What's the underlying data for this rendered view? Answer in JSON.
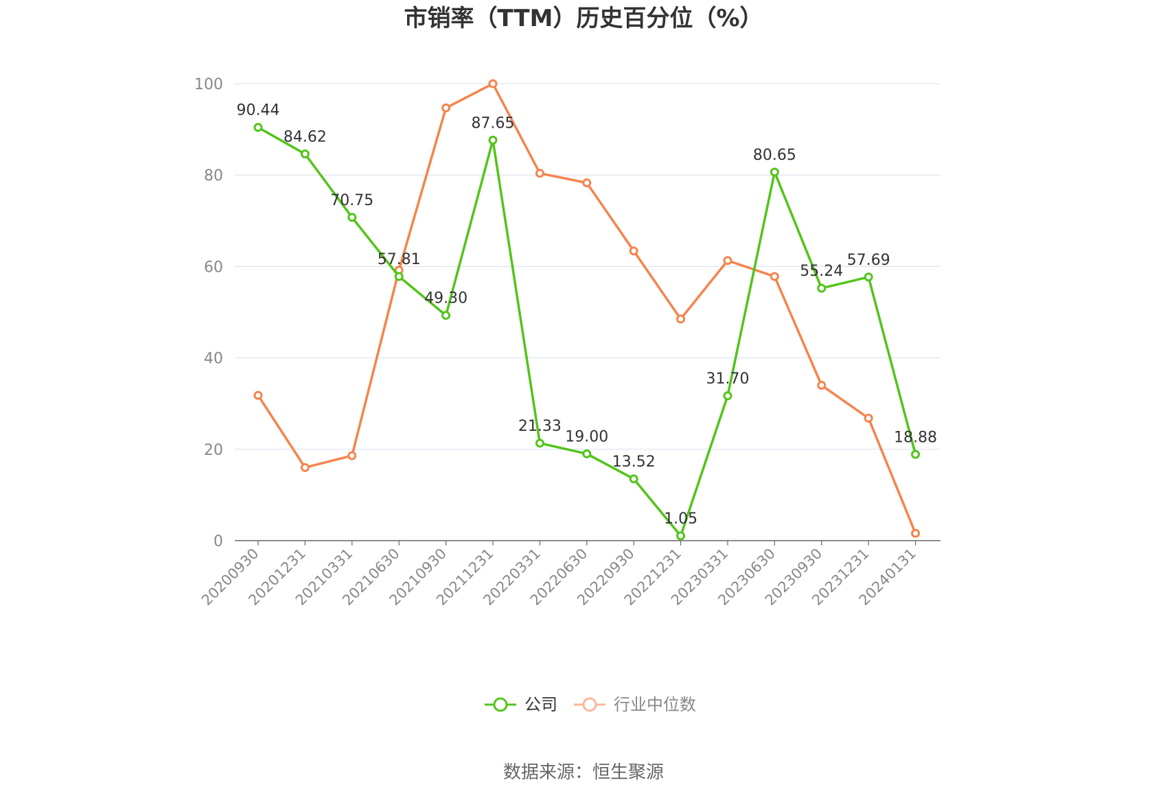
{
  "title": "市销率（TTM）历史百分位（%）",
  "source": "数据来源：恒生聚源",
  "colors": {
    "company": "#52c41a",
    "industry": "#f5844c",
    "industry_legend": "#f9b89a",
    "grid": "#dfe3f0",
    "axis": "#666666"
  },
  "chart_data": {
    "type": "line",
    "x": [
      "20200930",
      "20201231",
      "20210331",
      "20210630",
      "20210930",
      "20211231",
      "20220331",
      "20220630",
      "20220930",
      "20221231",
      "20230331",
      "20230630",
      "20230930",
      "20231231",
      "20240131"
    ],
    "ylim": [
      0,
      100
    ],
    "yticks": [
      0,
      20,
      40,
      60,
      80,
      100
    ],
    "grid": true,
    "legend_position": "bottom-center",
    "series": [
      {
        "name": "公司",
        "values": [
          90.44,
          84.62,
          70.75,
          57.81,
          49.3,
          87.65,
          21.33,
          19.0,
          13.52,
          1.05,
          31.7,
          80.65,
          55.24,
          57.69,
          18.88
        ],
        "labels": [
          "90.44",
          "84.62",
          "70.75",
          "57.81",
          "49.30",
          "87.65",
          "21.33",
          "19.00",
          "13.52",
          "1.05",
          "31.70",
          "80.65",
          "55.24",
          "57.69",
          "18.88"
        ]
      },
      {
        "name": "行业中位数",
        "values": [
          31.8,
          16.0,
          18.6,
          59.2,
          94.7,
          100.0,
          80.4,
          78.3,
          63.4,
          48.5,
          61.3,
          57.8,
          34.0,
          26.8,
          1.6
        ]
      }
    ]
  }
}
